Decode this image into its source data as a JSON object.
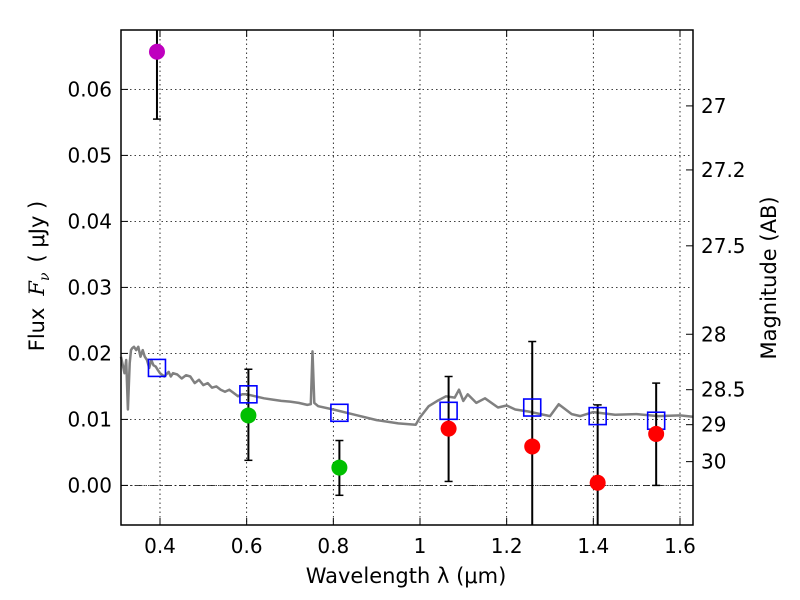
{
  "chart_data": {
    "type": "scatter",
    "xlabel": "Wavelength  λ (μm)",
    "ylabel_prefix": "Flux",
    "ylabel_symbol": "F",
    "ylabel_subscript": "ν",
    "ylabel_suffix": "( μJy )",
    "ylabel_right": "Magnitude (AB)",
    "xlim": [
      0.31,
      1.63
    ],
    "ylim": [
      -0.006,
      0.069
    ],
    "grid": true,
    "x_ticks": [
      0.4,
      0.6,
      0.8,
      1.0,
      1.2,
      1.4,
      1.6
    ],
    "x_tick_labels": [
      "0.4",
      "0.6",
      "0.8",
      "1",
      "1.2",
      "1.4",
      "1.6"
    ],
    "y_ticks": [
      0.0,
      0.01,
      0.02,
      0.03,
      0.04,
      0.05,
      0.06
    ],
    "y_tick_labels": [
      "0.00",
      "0.01",
      "0.02",
      "0.03",
      "0.04",
      "0.05",
      "0.06"
    ],
    "right_ticks": [
      {
        "label": "27",
        "flux": 0.0575
      },
      {
        "label": "27.2",
        "flux": 0.0478
      },
      {
        "label": "27.5",
        "flux": 0.0363
      },
      {
        "label": "28",
        "flux": 0.0229
      },
      {
        "label": "28.5",
        "flux": 0.0145
      },
      {
        "label": "29",
        "flux": 0.0092
      },
      {
        "label": "30",
        "flux": 0.0036
      }
    ],
    "series": [
      {
        "name": "model SED",
        "kind": "line",
        "color": "#808080",
        "x": [
          0.31,
          0.318,
          0.322,
          0.326,
          0.33,
          0.333,
          0.336,
          0.34,
          0.345,
          0.35,
          0.355,
          0.36,
          0.365,
          0.37,
          0.375,
          0.38,
          0.385,
          0.39,
          0.395,
          0.4,
          0.41,
          0.42,
          0.425,
          0.43,
          0.44,
          0.45,
          0.46,
          0.47,
          0.48,
          0.49,
          0.5,
          0.51,
          0.52,
          0.53,
          0.54,
          0.55,
          0.56,
          0.57,
          0.58,
          0.59,
          0.6,
          0.62,
          0.64,
          0.66,
          0.68,
          0.7,
          0.72,
          0.74,
          0.748,
          0.752,
          0.756,
          0.765,
          0.8,
          0.85,
          0.9,
          0.95,
          0.99,
          1.0,
          1.02,
          1.04,
          1.06,
          1.08,
          1.09,
          1.1,
          1.11,
          1.13,
          1.15,
          1.18,
          1.2,
          1.22,
          1.25,
          1.3,
          1.32,
          1.35,
          1.37,
          1.4,
          1.45,
          1.5,
          1.55,
          1.6,
          1.63
        ],
        "y": [
          0.0195,
          0.017,
          0.019,
          0.0115,
          0.0185,
          0.0205,
          0.0208,
          0.021,
          0.0205,
          0.021,
          0.0195,
          0.0205,
          0.0195,
          0.019,
          0.0178,
          0.019,
          0.0182,
          0.018,
          0.0175,
          0.017,
          0.0165,
          0.0172,
          0.0165,
          0.017,
          0.0168,
          0.0162,
          0.0167,
          0.0165,
          0.0155,
          0.016,
          0.0152,
          0.0155,
          0.0148,
          0.015,
          0.0145,
          0.0142,
          0.0145,
          0.014,
          0.0135,
          0.0138,
          0.0138,
          0.0135,
          0.0132,
          0.013,
          0.0128,
          0.0127,
          0.0125,
          0.0122,
          0.0123,
          0.0203,
          0.0125,
          0.012,
          0.0115,
          0.0107,
          0.0099,
          0.0094,
          0.0092,
          0.0103,
          0.012,
          0.0128,
          0.0135,
          0.0133,
          0.0145,
          0.0128,
          0.0138,
          0.0125,
          0.0132,
          0.0118,
          0.0121,
          0.0115,
          0.0112,
          0.0105,
          0.0123,
          0.0108,
          0.0105,
          0.0111,
          0.0107,
          0.0108,
          0.0105,
          0.0106,
          0.0104
        ]
      },
      {
        "name": "model photometry",
        "kind": "square",
        "color": "#0000ff",
        "x": [
          0.393,
          0.604,
          0.814,
          1.066,
          1.259,
          1.41,
          1.545
        ],
        "y": [
          0.0178,
          0.0138,
          0.011,
          0.0113,
          0.0118,
          0.0105,
          0.0098
        ]
      },
      {
        "name": "observed (violet)",
        "kind": "point",
        "color": "#bf00bf",
        "x": [
          0.393
        ],
        "y": [
          0.0657
        ],
        "yerr_low": [
          0.0555
        ],
        "yerr_high": [
          0.069
        ]
      },
      {
        "name": "observed (green)",
        "kind": "point",
        "color": "#00bf00",
        "x": [
          0.604,
          0.814
        ],
        "y": [
          0.0106,
          0.0027
        ],
        "yerr_low": [
          0.0038,
          -0.0015
        ],
        "yerr_high": [
          0.0176,
          0.0068
        ]
      },
      {
        "name": "observed (red)",
        "kind": "point",
        "color": "#ff0000",
        "x": [
          1.066,
          1.259,
          1.41,
          1.545
        ],
        "y": [
          0.0086,
          0.0059,
          0.0004,
          0.0078
        ],
        "yerr_low": [
          0.0006,
          -0.006,
          -0.006,
          0.0
        ],
        "yerr_high": [
          0.0165,
          0.0218,
          0.0122,
          0.0155
        ]
      }
    ]
  }
}
